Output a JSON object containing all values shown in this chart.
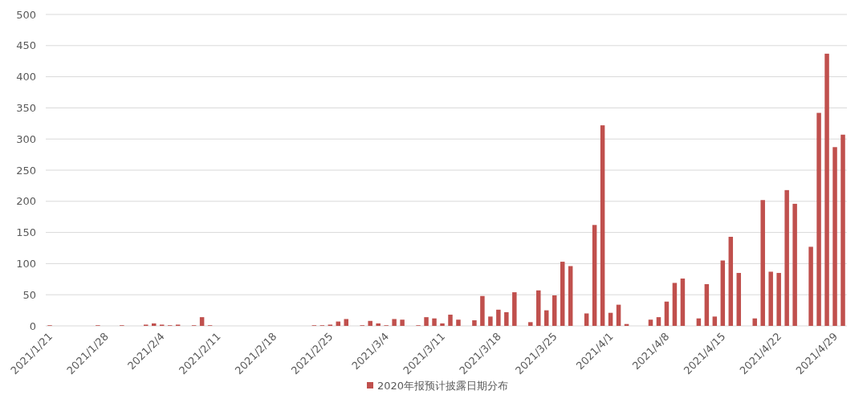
{
  "chart_data": {
    "type": "bar",
    "grid": "y",
    "legend": "bottom",
    "series": [
      {
        "name": "2020年报预计披露日期分布",
        "color": "#c0504d",
        "x": [
          "2021-01-21",
          "2021-01-27",
          "2021-01-30",
          "2021-02-02",
          "2021-02-03",
          "2021-02-04",
          "2021-02-05",
          "2021-02-06",
          "2021-02-08",
          "2021-02-09",
          "2021-02-10",
          "2021-02-23",
          "2021-02-24",
          "2021-02-25",
          "2021-02-26",
          "2021-02-27",
          "2021-03-01",
          "2021-03-02",
          "2021-03-03",
          "2021-03-04",
          "2021-03-05",
          "2021-03-06",
          "2021-03-08",
          "2021-03-09",
          "2021-03-10",
          "2021-03-11",
          "2021-03-12",
          "2021-03-13",
          "2021-03-15",
          "2021-03-16",
          "2021-03-17",
          "2021-03-18",
          "2021-03-19",
          "2021-03-20",
          "2021-03-22",
          "2021-03-23",
          "2021-03-24",
          "2021-03-25",
          "2021-03-26",
          "2021-03-27",
          "2021-03-29",
          "2021-03-30",
          "2021-03-31",
          "2021-04-01",
          "2021-04-02",
          "2021-04-03",
          "2021-04-06",
          "2021-04-07",
          "2021-04-08",
          "2021-04-09",
          "2021-04-10",
          "2021-04-12",
          "2021-04-13",
          "2021-04-14",
          "2021-04-15",
          "2021-04-16",
          "2021-04-17",
          "2021-04-19",
          "2021-04-20",
          "2021-04-21",
          "2021-04-22",
          "2021-04-23",
          "2021-04-24",
          "2021-04-26",
          "2021-04-27",
          "2021-04-28",
          "2021-04-29",
          "2021-04-30"
        ],
        "values": [
          1,
          1,
          1,
          2,
          4,
          2,
          1,
          2,
          1,
          14,
          1,
          1,
          1,
          2,
          7,
          11,
          1,
          8,
          4,
          1,
          11,
          10,
          1,
          14,
          12,
          4,
          18,
          10,
          9,
          48,
          15,
          26,
          22,
          54,
          6,
          57,
          25,
          49,
          103,
          96,
          20,
          162,
          322,
          21,
          34,
          3,
          10,
          14,
          39,
          69,
          76,
          12,
          67,
          15,
          105,
          143,
          85,
          12,
          202,
          87,
          85,
          218,
          196,
          127,
          342,
          437,
          287,
          307
        ]
      }
    ],
    "xlim": [
      "2021-01-20T12:00",
      "2021-04-30T12:00"
    ],
    "xticks": [
      {
        "value": "2021-01-21",
        "label": "2021/1/21"
      },
      {
        "value": "2021-01-28",
        "label": "2021/1/28"
      },
      {
        "value": "2021-02-04",
        "label": "2021/2/4"
      },
      {
        "value": "2021-02-11",
        "label": "2021/2/11"
      },
      {
        "value": "2021-02-18",
        "label": "2021/2/18"
      },
      {
        "value": "2021-02-25",
        "label": "2021/2/25"
      },
      {
        "value": "2021-03-04",
        "label": "2021/3/4"
      },
      {
        "value": "2021-03-11",
        "label": "2021/3/11"
      },
      {
        "value": "2021-03-18",
        "label": "2021/3/18"
      },
      {
        "value": "2021-03-25",
        "label": "2021/3/25"
      },
      {
        "value": "2021-04-01",
        "label": "2021/4/1"
      },
      {
        "value": "2021-04-08",
        "label": "2021/4/8"
      },
      {
        "value": "2021-04-15",
        "label": "2021/4/15"
      },
      {
        "value": "2021-04-22",
        "label": "2021/4/22"
      },
      {
        "value": "2021-04-29",
        "label": "2021/4/29"
      }
    ],
    "ylim": [
      0,
      500
    ],
    "yticks": [
      0,
      50,
      100,
      150,
      200,
      250,
      300,
      350,
      400,
      450,
      500
    ]
  }
}
